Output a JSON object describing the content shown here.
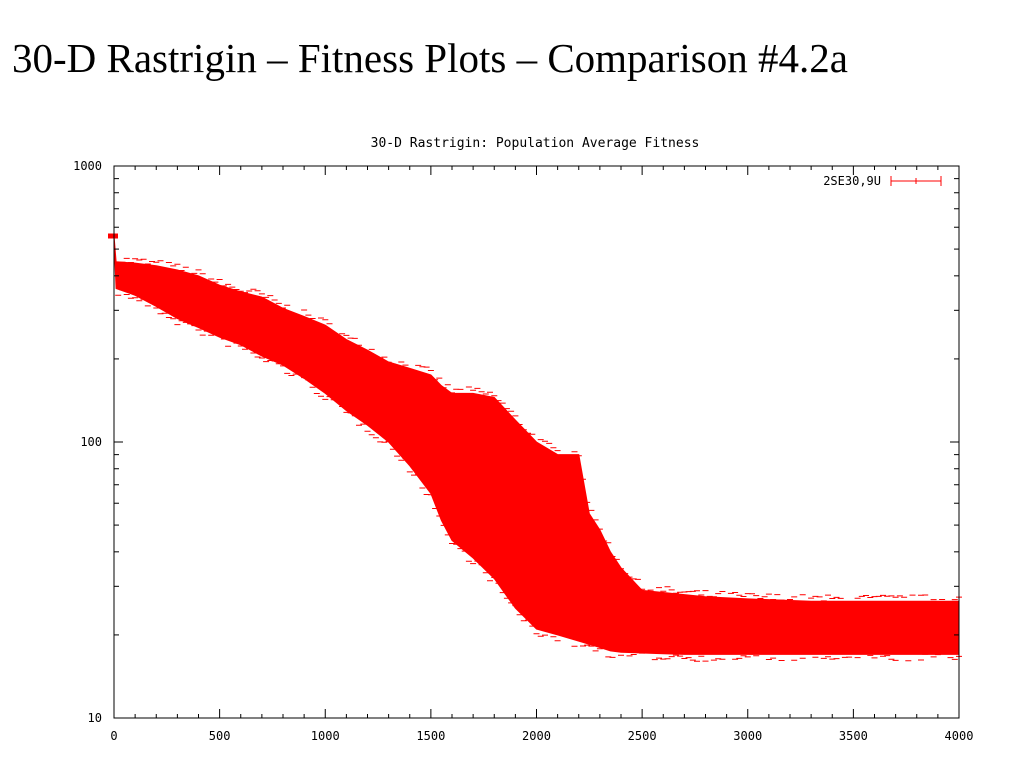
{
  "slide": {
    "title": "30-D Rastrigin – Fitness Plots – Comparison #4.2a"
  },
  "chart_data": {
    "type": "area",
    "title": "30-D Rastrigin: Population Average Fitness",
    "xlabel": "",
    "ylabel": "",
    "xlim": [
      0,
      4000
    ],
    "ylim": [
      10,
      1000
    ],
    "yscale": "log",
    "grid": false,
    "legend_position": "top-right",
    "x_ticks": [
      0,
      500,
      1000,
      1500,
      2000,
      2500,
      3000,
      3500,
      4000
    ],
    "x_tick_labels": [
      "0",
      "500",
      "1000",
      "1500",
      "2000",
      "2500",
      "3000",
      "3500",
      "4000"
    ],
    "y_ticks": [
      10,
      100,
      1000
    ],
    "y_tick_labels": [
      "10",
      "100",
      "1000"
    ],
    "series": [
      {
        "name": "2SE30,9U",
        "color": "#ff0000",
        "style": "error-band",
        "x": [
          0,
          10,
          100,
          200,
          300,
          400,
          500,
          600,
          700,
          800,
          900,
          1000,
          1100,
          1200,
          1300,
          1400,
          1500,
          1550,
          1600,
          1700,
          1800,
          1900,
          2000,
          2100,
          2200,
          2250,
          2300,
          2350,
          2400,
          2500,
          2600,
          2700,
          2800,
          3000,
          3300,
          3500,
          4000
        ],
        "upper": [
          560,
          450,
          445,
          435,
          420,
          400,
          370,
          350,
          335,
          305,
          285,
          265,
          235,
          215,
          195,
          185,
          175,
          160,
          150,
          150,
          145,
          120,
          100,
          90,
          90,
          55,
          48,
          40,
          35,
          29,
          28.5,
          28,
          27.5,
          27,
          26.5,
          26.5,
          26.5
        ],
        "lower": [
          540,
          360,
          340,
          310,
          280,
          260,
          240,
          225,
          205,
          190,
          170,
          150,
          130,
          115,
          100,
          82,
          65,
          52,
          44,
          38,
          32,
          25,
          21,
          20,
          19,
          18.5,
          18,
          17.5,
          17.3,
          17.2,
          17.1,
          17,
          17,
          17,
          17,
          17,
          17
        ]
      }
    ]
  }
}
